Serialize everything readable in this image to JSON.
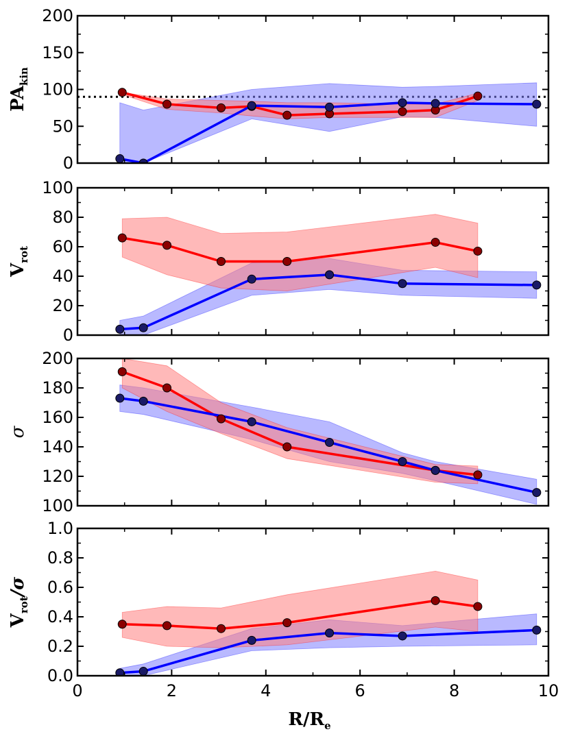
{
  "chart_data": [
    {
      "panel": "pa_kin",
      "type": "line",
      "ylabel_main": "PA",
      "ylabel_sub": "kin",
      "xlim": [
        0,
        10
      ],
      "ylim": [
        0,
        200
      ],
      "yticks": [
        0,
        50,
        100,
        150,
        200
      ],
      "yticklabels": [
        "0",
        "50",
        "100",
        "150",
        "200"
      ],
      "reference_line": {
        "y": 90,
        "style": "dotted"
      },
      "series": [
        {
          "name": "red",
          "line_color": "#ff0000",
          "band_color": "#ff7f7f",
          "marker_color": "#8b0000",
          "x": [
            0.95,
            1.9,
            3.05,
            3.7,
            4.45,
            5.35,
            6.9,
            7.6,
            8.5
          ],
          "y": [
            96,
            80,
            75,
            77,
            65,
            67,
            70,
            72,
            91
          ],
          "band_upper": [
            96,
            87,
            85,
            84,
            82,
            82,
            80,
            80,
            95
          ],
          "band_lower": [
            93,
            73,
            68,
            64,
            60,
            62,
            62,
            62,
            85
          ]
        },
        {
          "name": "blue",
          "line_color": "#0000ff",
          "band_color": "#7f7fff",
          "marker_color": "#1a1a66",
          "x": [
            0.9,
            1.4,
            3.7,
            5.35,
            6.9,
            7.6,
            9.75
          ],
          "y": [
            6,
            0,
            78,
            76,
            82,
            81,
            80
          ],
          "band_upper": [
            82,
            72,
            100,
            108,
            103,
            104,
            109
          ],
          "band_lower": [
            0,
            0,
            60,
            43,
            63,
            62,
            50
          ]
        }
      ]
    },
    {
      "panel": "v_rot",
      "type": "line",
      "ylabel_main": "V",
      "ylabel_sub": "rot",
      "xlim": [
        0,
        10
      ],
      "ylim": [
        0,
        100
      ],
      "yticks": [
        0,
        20,
        40,
        60,
        80,
        100
      ],
      "yticklabels": [
        "0",
        "20",
        "40",
        "60",
        "80",
        "100"
      ],
      "series": [
        {
          "name": "red",
          "line_color": "#ff0000",
          "band_color": "#ff7f7f",
          "marker_color": "#8b0000",
          "x": [
            0.95,
            1.9,
            3.05,
            4.45,
            7.6,
            8.5
          ],
          "y": [
            66,
            61,
            50,
            50,
            63,
            57
          ],
          "band_upper": [
            79,
            80,
            69,
            70,
            82,
            76
          ],
          "band_lower": [
            53,
            41,
            32,
            30,
            46,
            39
          ]
        },
        {
          "name": "blue",
          "line_color": "#0000ff",
          "band_color": "#7f7fff",
          "marker_color": "#1a1a66",
          "x": [
            0.9,
            1.4,
            3.7,
            5.35,
            6.9,
            9.75
          ],
          "y": [
            4,
            5,
            38,
            41,
            35,
            34
          ],
          "band_upper": [
            10,
            13,
            49,
            52,
            44,
            43
          ],
          "band_lower": [
            0,
            0,
            27,
            31,
            27,
            25
          ]
        }
      ]
    },
    {
      "panel": "sigma",
      "type": "line",
      "ylabel_main": "σ",
      "ylabel_sub": "",
      "xlim": [
        0,
        10
      ],
      "ylim": [
        100,
        200
      ],
      "yticks": [
        100,
        120,
        140,
        160,
        180,
        200
      ],
      "yticklabels": [
        "100",
        "120",
        "140",
        "160",
        "180",
        "200"
      ],
      "series": [
        {
          "name": "red",
          "line_color": "#ff0000",
          "band_color": "#ff7f7f",
          "marker_color": "#8b0000",
          "x": [
            0.95,
            1.9,
            3.05,
            4.45,
            7.6,
            8.5
          ],
          "y": [
            191,
            180,
            159,
            140,
            124,
            121
          ],
          "band_upper": [
            200,
            195,
            170,
            153,
            128,
            127
          ],
          "band_lower": [
            180,
            164,
            149,
            132,
            116,
            115
          ]
        },
        {
          "name": "blue",
          "line_color": "#0000ff",
          "band_color": "#7f7fff",
          "marker_color": "#1a1a66",
          "x": [
            0.9,
            1.4,
            3.7,
            5.35,
            6.9,
            7.6,
            9.75
          ],
          "y": [
            173,
            171,
            157,
            143,
            130,
            124,
            109
          ],
          "band_upper": [
            182,
            180,
            167,
            157,
            136,
            130,
            118
          ],
          "band_lower": [
            164,
            162,
            145,
            130,
            122,
            117,
            101
          ]
        }
      ]
    },
    {
      "panel": "v_over_sigma",
      "type": "line",
      "ylabel_main": "V",
      "ylabel_sub": "rot",
      "ylabel_suffix": "/σ",
      "xlabel_main": "R/R",
      "xlabel_sub": "e",
      "xlim": [
        0,
        10
      ],
      "ylim": [
        0,
        1
      ],
      "xticks": [
        0,
        2,
        4,
        6,
        8,
        10
      ],
      "xticklabels": [
        "0",
        "2",
        "4",
        "6",
        "8",
        "10"
      ],
      "yticks": [
        0,
        0.2,
        0.4,
        0.6,
        0.8,
        1.0
      ],
      "yticklabels": [
        "0.0",
        "0.2",
        "0.4",
        "0.6",
        "0.8",
        "1.0"
      ],
      "series": [
        {
          "name": "red",
          "line_color": "#ff0000",
          "band_color": "#ff7f7f",
          "marker_color": "#8b0000",
          "x": [
            0.95,
            1.9,
            3.05,
            4.45,
            7.6,
            8.5
          ],
          "y": [
            0.35,
            0.34,
            0.32,
            0.36,
            0.51,
            0.47
          ],
          "band_upper": [
            0.43,
            0.47,
            0.46,
            0.55,
            0.71,
            0.65
          ],
          "band_lower": [
            0.26,
            0.2,
            0.19,
            0.21,
            0.33,
            0.3
          ]
        },
        {
          "name": "blue",
          "line_color": "#0000ff",
          "band_color": "#7f7fff",
          "marker_color": "#1a1a66",
          "x": [
            0.9,
            1.4,
            3.7,
            5.35,
            6.9,
            9.75
          ],
          "y": [
            0.02,
            0.03,
            0.24,
            0.29,
            0.27,
            0.31
          ],
          "band_upper": [
            0.05,
            0.08,
            0.32,
            0.38,
            0.34,
            0.42
          ],
          "band_lower": [
            0.0,
            0.0,
            0.17,
            0.19,
            0.2,
            0.21
          ]
        }
      ]
    }
  ]
}
